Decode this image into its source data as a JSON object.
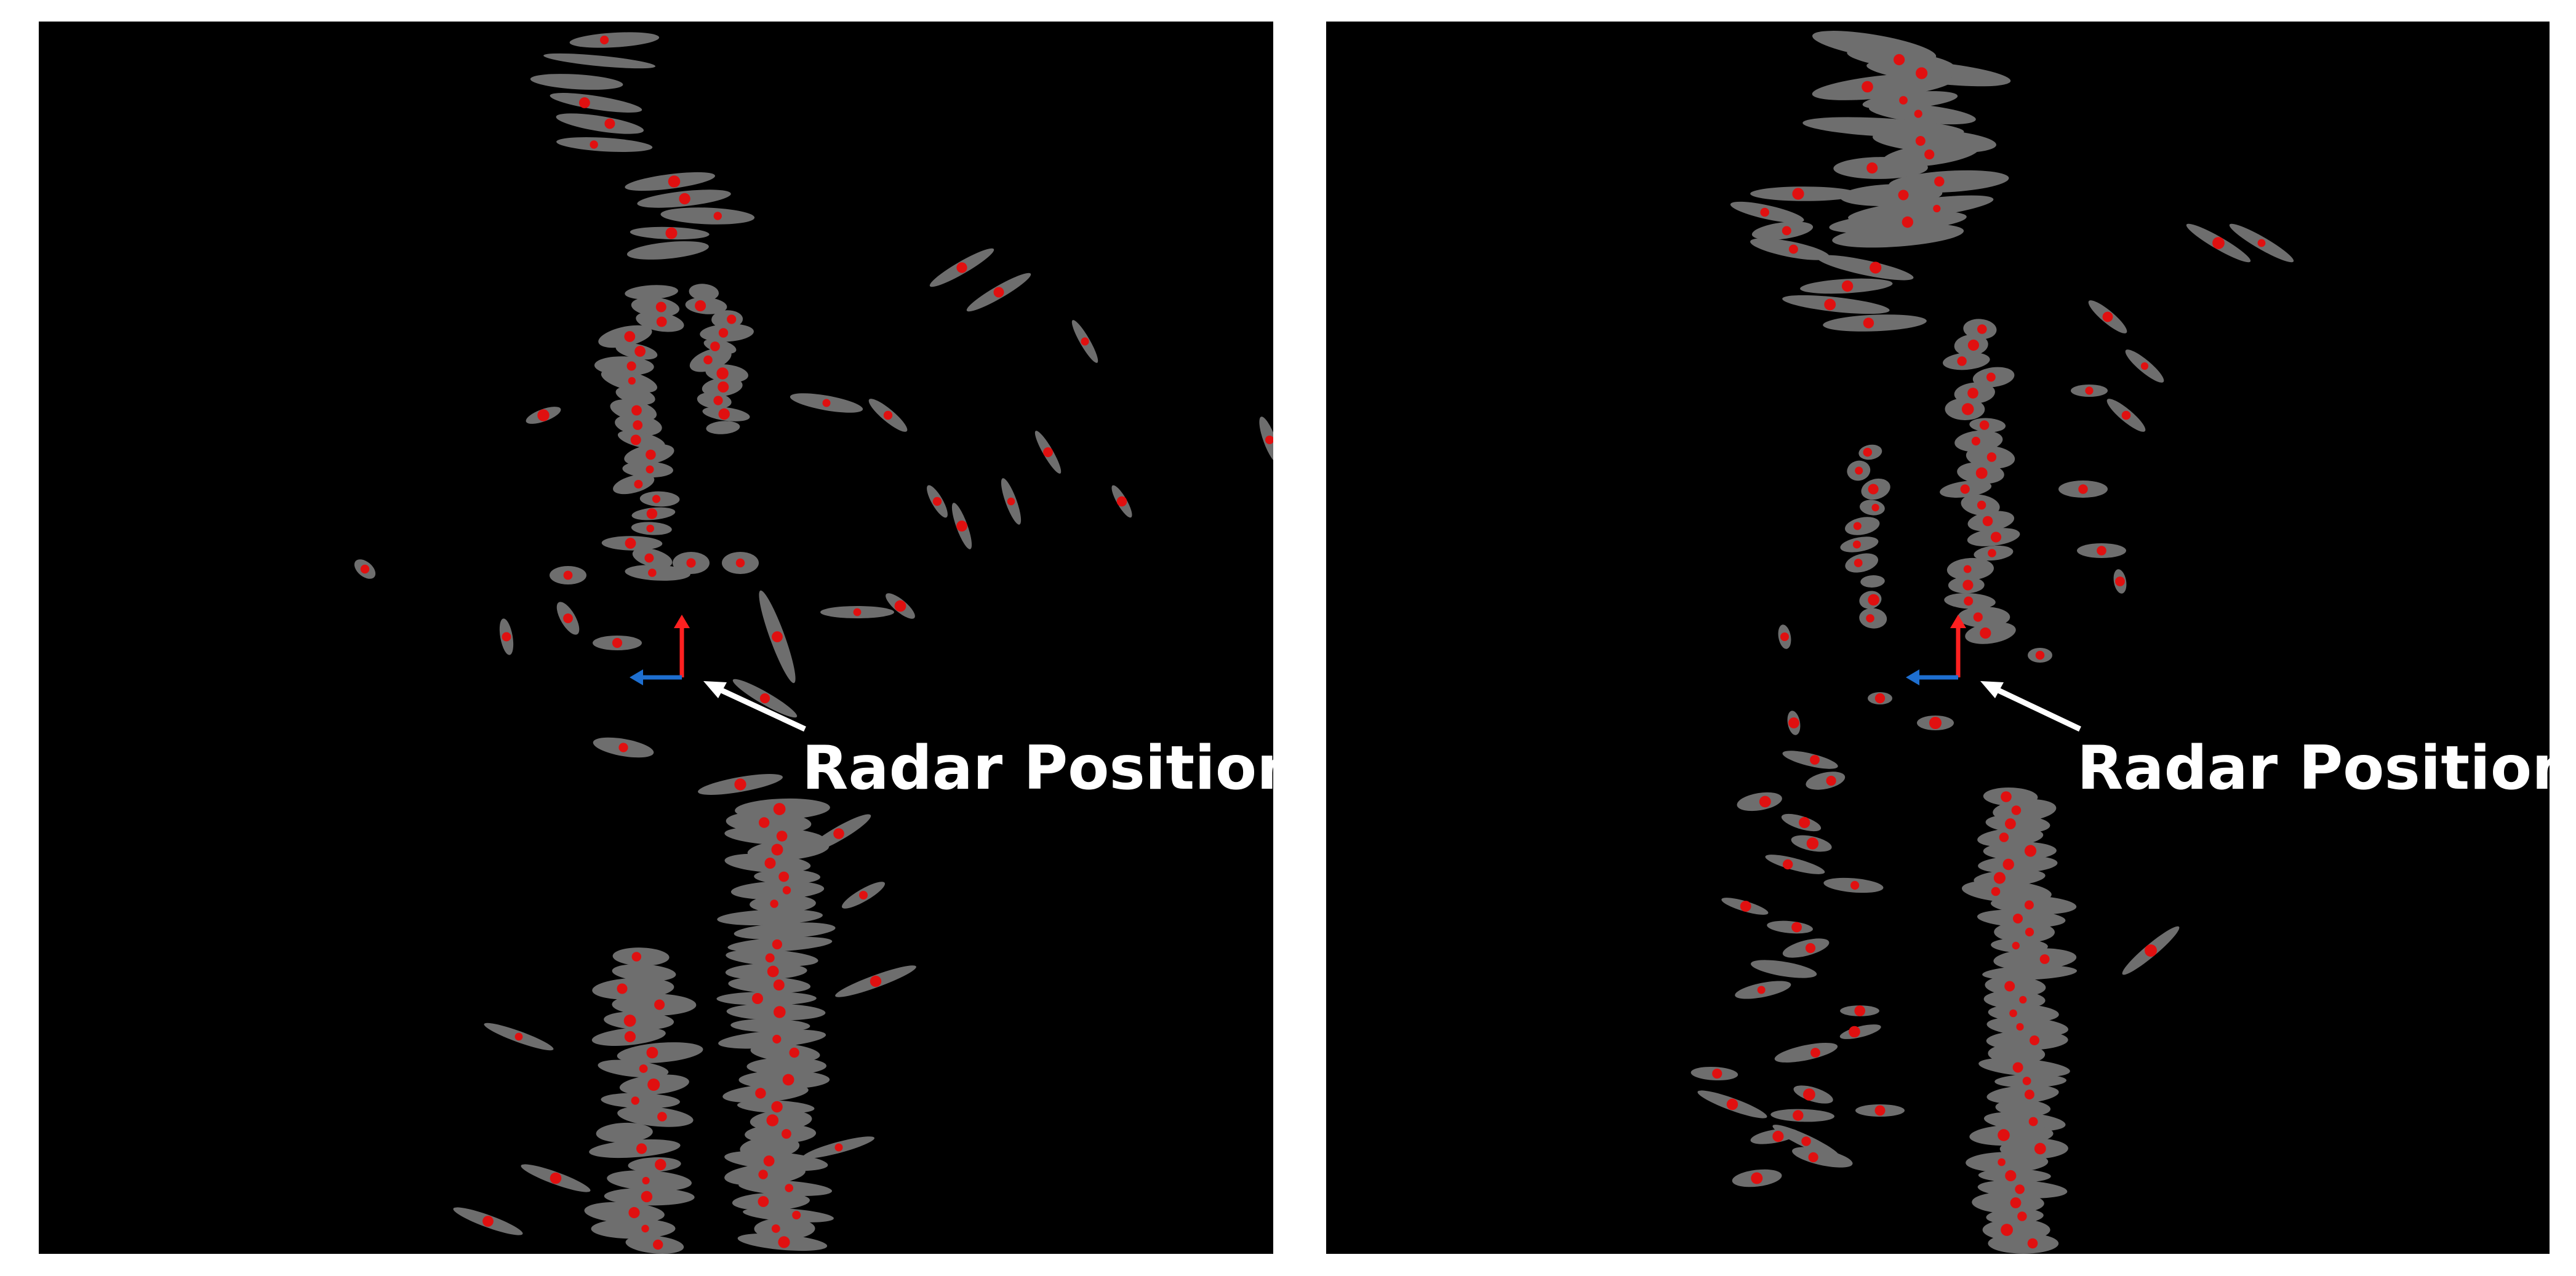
{
  "panels": [
    {
      "id": "left",
      "annotation": "Radar Position",
      "colors": {
        "background": "#000000",
        "uncertainty": "#6e6e6e",
        "detection": "#e01010",
        "axis_forward": "#ff2020",
        "axis_lateral": "#1e6fd0",
        "arrow": "#ffffff"
      }
    },
    {
      "id": "right",
      "annotation": "Radar Position",
      "colors": {
        "background": "#000000",
        "uncertainty": "#6e6e6e",
        "detection": "#e01010",
        "axis_forward": "#ff2020",
        "axis_lateral": "#1e6fd0",
        "arrow": "#ffffff"
      }
    }
  ]
}
